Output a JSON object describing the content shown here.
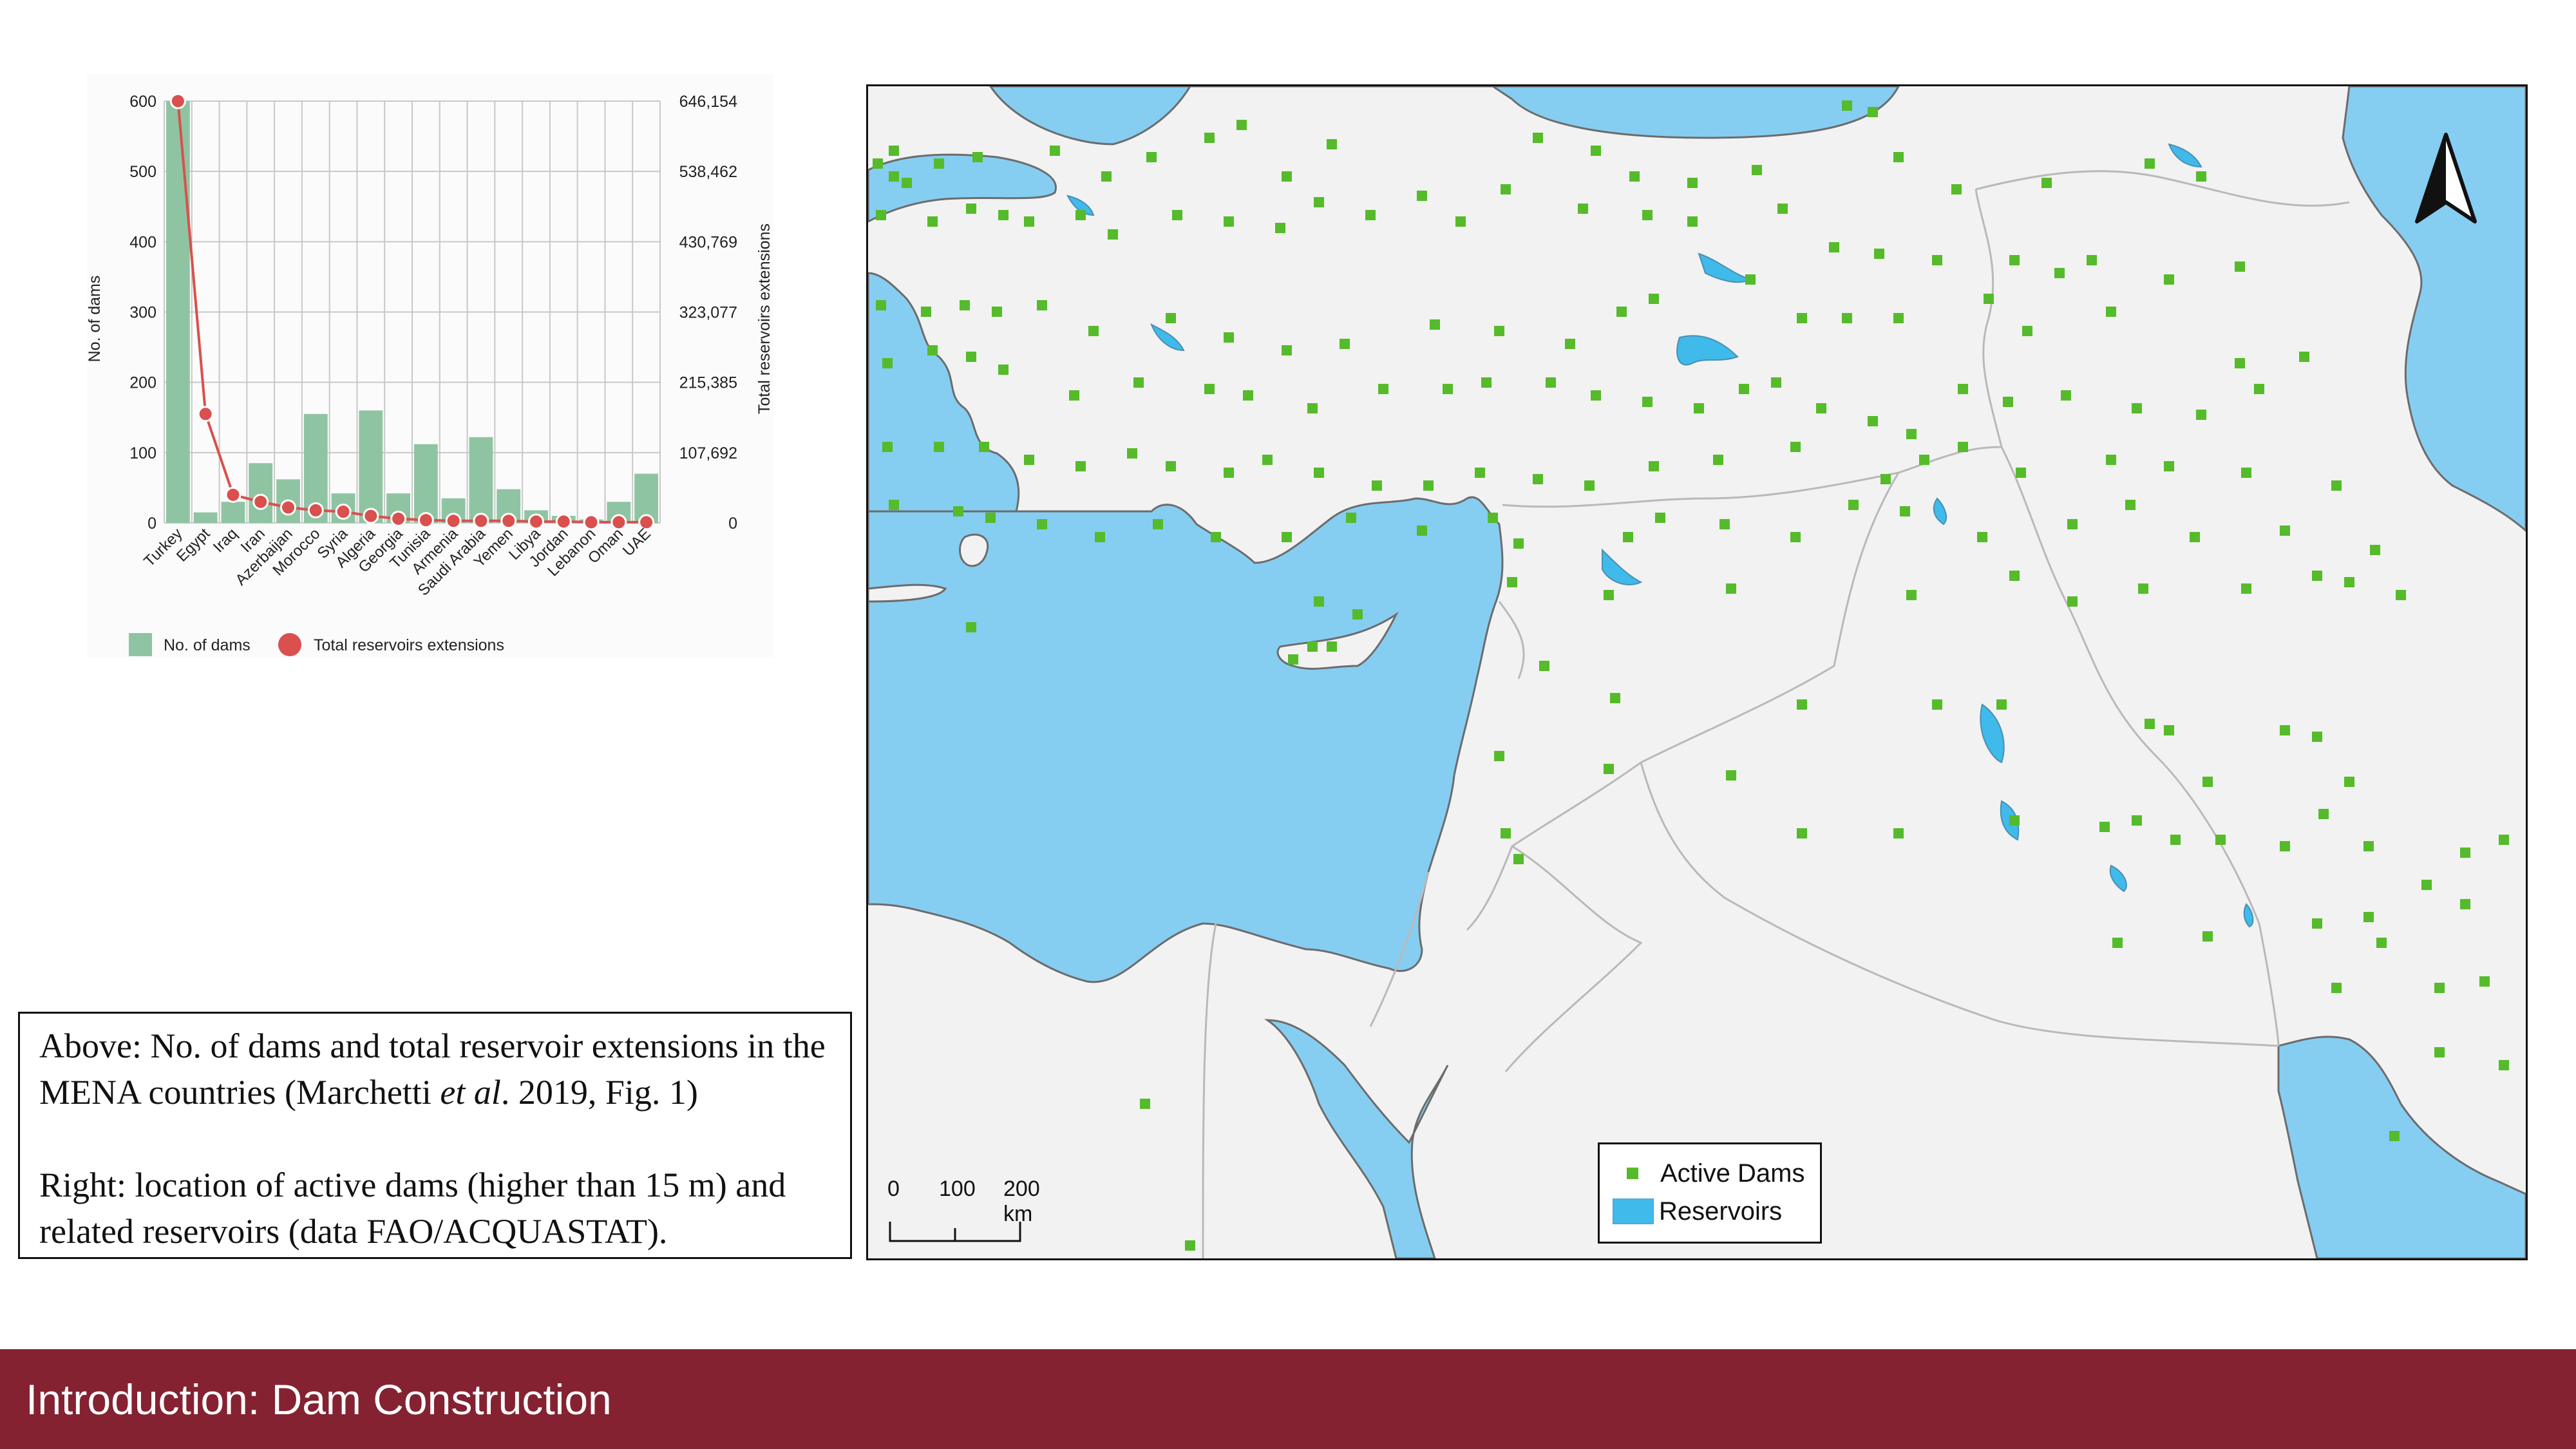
{
  "chart_data": {
    "type": "bar",
    "categories": [
      "Turkey",
      "Egypt",
      "Iraq",
      "Iran",
      "Azerbaijan",
      "Morocco",
      "Syria",
      "Algeria",
      "Georgia",
      "Tunisia",
      "Armenia",
      "Saudi Arabia",
      "Yemen",
      "Libya",
      "Jordan",
      "Lebanon",
      "Oman",
      "UAE"
    ],
    "series": [
      {
        "name": "No. of dams",
        "type": "bar",
        "axis": "left",
        "color": "#8fc4a2",
        "values": [
          600,
          15,
          30,
          85,
          62,
          155,
          42,
          160,
          42,
          112,
          35,
          122,
          48,
          18,
          10,
          5,
          30,
          70
        ]
      },
      {
        "name": "Total reservoirs extensions",
        "type": "line",
        "axis": "right",
        "color": "#d9504e",
        "values": [
          600,
          155,
          40,
          30,
          22,
          18,
          16,
          10,
          6,
          4,
          3,
          3,
          3,
          2,
          2,
          1,
          1,
          1
        ]
      }
    ],
    "ylabel": "No. of dams",
    "y2label": "Total reservoirs extensions",
    "ylim": [
      0,
      600
    ],
    "yticks": [
      0,
      100,
      200,
      300,
      400,
      500,
      600
    ],
    "y2ticks": [
      "0",
      "107,692",
      "215,385",
      "323,077",
      "430,769",
      "538,462",
      "646,154"
    ],
    "legend_position": "bottom-left",
    "grid": true
  },
  "caption": {
    "line1_pre": "Above: No. of dams and total reservoir extensions in the MENA countries (Marchetti ",
    "line1_italic": "et al",
    "line1_post": ". 2019, Fig. 1)",
    "line2": "Right: location of active dams (higher than 15 m) and related reservoirs (data FAO/ACQUASTAT)."
  },
  "map": {
    "legend": {
      "dams_label": "Active Dams",
      "reservoirs_label": "Reservoirs"
    },
    "scale": {
      "label0": "0",
      "label1": "100",
      "label2": "200 km"
    },
    "colors": {
      "sea": "#86cdf2",
      "land": "#f2f2f2",
      "dam": "#55bb2a",
      "reservoir": "#3fbaea"
    },
    "north_icon": "north-arrow-icon"
  },
  "footer": {
    "title": "Introduction: Dam Construction",
    "color": "#842232"
  }
}
